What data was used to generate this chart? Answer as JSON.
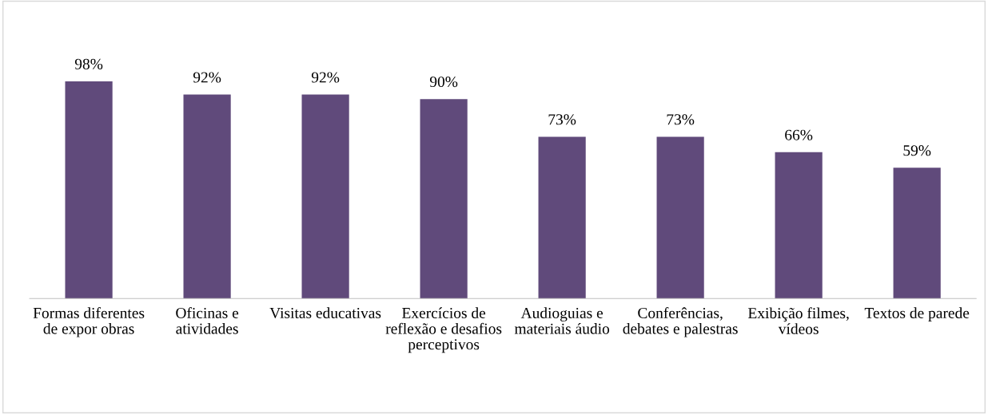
{
  "chart_data": {
    "type": "bar",
    "categories": [
      "Formas diferentes de expor obras",
      "Oficinas e atividades",
      "Visitas educativas",
      "Exercícios de reflexão e desafios perceptivos",
      "Audioguias e materiais áudio",
      "Conferências, debates e palestras",
      "Exibição filmes, vídeos",
      "Textos de parede"
    ],
    "values": [
      98,
      92,
      92,
      90,
      73,
      73,
      66,
      59
    ],
    "value_labels": [
      "98%",
      "92%",
      "92%",
      "90%",
      "73%",
      "73%",
      "66%",
      "59%"
    ],
    "color": "#604a7b",
    "grid": false,
    "legend": false
  }
}
